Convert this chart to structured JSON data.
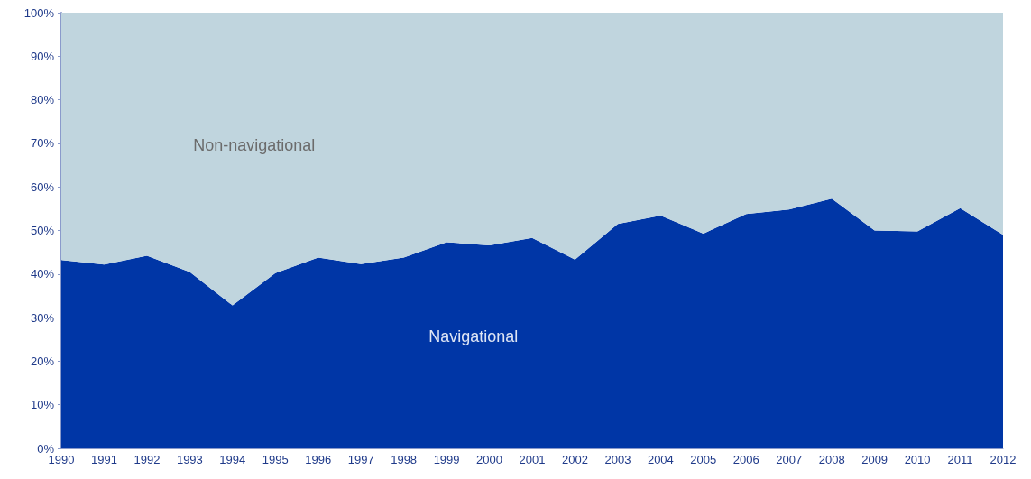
{
  "chart_data": {
    "type": "area",
    "stacked": true,
    "categories": [
      "1990",
      "1991",
      "1992",
      "1993",
      "1994",
      "1995",
      "1996",
      "1997",
      "1998",
      "1999",
      "2000",
      "2001",
      "2002",
      "2003",
      "2004",
      "2005",
      "2006",
      "2007",
      "2008",
      "2009",
      "2010",
      "2011",
      "2012"
    ],
    "series": [
      {
        "name": "Navigational",
        "color": "#0036a6",
        "values": [
          43.2,
          42.2,
          44.2,
          40.5,
          32.8,
          40.2,
          43.8,
          42.3,
          43.8,
          47.3,
          46.6,
          48.3,
          43.3,
          51.5,
          53.4,
          49.3,
          53.8,
          54.8,
          57.3,
          50.0,
          49.8,
          55.1,
          49.0
        ]
      },
      {
        "name": "Non-navigational",
        "color": "#c0d5de",
        "values": [
          56.8,
          57.8,
          55.8,
          59.5,
          67.2,
          59.8,
          56.2,
          57.7,
          56.2,
          52.7,
          53.4,
          51.7,
          56.7,
          48.5,
          46.6,
          50.7,
          46.2,
          45.2,
          42.7,
          50.0,
          50.2,
          44.9,
          51.0
        ]
      }
    ],
    "ylim": [
      0,
      100
    ],
    "yticks": [
      {
        "value": 0,
        "label": "0%"
      },
      {
        "value": 10,
        "label": "10%"
      },
      {
        "value": 20,
        "label": "20%"
      },
      {
        "value": 30,
        "label": "30%"
      },
      {
        "value": 40,
        "label": "40%"
      },
      {
        "value": 50,
        "label": "50%"
      },
      {
        "value": 60,
        "label": "60%"
      },
      {
        "value": 70,
        "label": "70%"
      },
      {
        "value": 80,
        "label": "80%"
      },
      {
        "value": 90,
        "label": "90%"
      },
      {
        "value": 100,
        "label": "100%"
      }
    ],
    "grid": false,
    "legend": false
  }
}
